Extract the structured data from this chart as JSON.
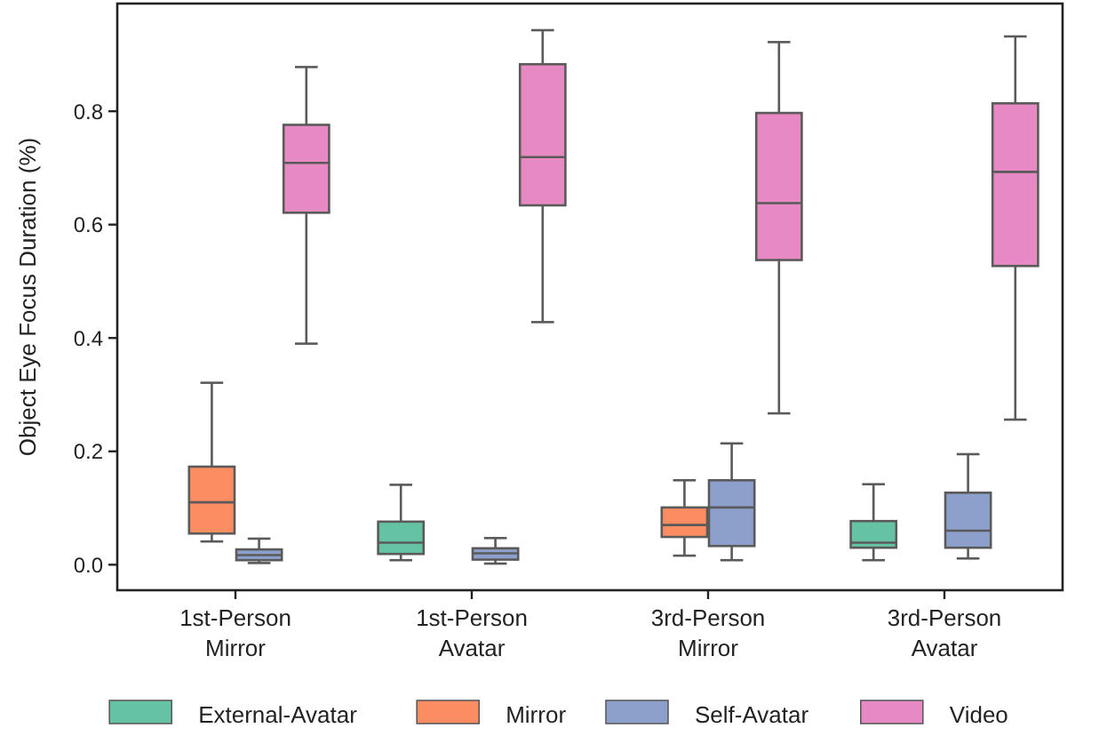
{
  "chart_data": {
    "type": "box",
    "ylabel": "Object Eye Focus Duration (%)",
    "categories": [
      "1st-Person\nMirror",
      "1st-Person\nAvatar",
      "3rd-Person\nMirror",
      "3rd-Person\nAvatar"
    ],
    "ylim": [
      -0.045,
      0.99
    ],
    "yticks": [
      {
        "value": 0,
        "label": "0.0"
      },
      {
        "value": 0.2,
        "label": "0.2"
      },
      {
        "value": 0.4,
        "label": "0.4"
      },
      {
        "value": 0.6,
        "label": "0.6"
      },
      {
        "value": 0.8,
        "label": "0.8"
      }
    ],
    "legend": "bottom",
    "grid": false,
    "series": [
      {
        "name": "External-Avatar",
        "color": "#66c2a5",
        "boxes": [
          null,
          {
            "low": 0.008,
            "q1": 0.019,
            "median": 0.039,
            "q3": 0.076,
            "high": 0.141
          },
          null,
          {
            "low": 0.008,
            "q1": 0.03,
            "median": 0.039,
            "q3": 0.077,
            "high": 0.142
          }
        ]
      },
      {
        "name": "Mirror",
        "color": "#fc8d62",
        "boxes": [
          {
            "low": 0.041,
            "q1": 0.055,
            "median": 0.11,
            "q3": 0.173,
            "high": 0.321
          },
          null,
          {
            "low": 0.016,
            "q1": 0.049,
            "median": 0.07,
            "q3": 0.101,
            "high": 0.149
          },
          null
        ]
      },
      {
        "name": "Self-Avatar",
        "color": "#8da0cb",
        "boxes": [
          {
            "low": 0.003,
            "q1": 0.008,
            "median": 0.017,
            "q3": 0.027,
            "high": 0.046
          },
          {
            "low": 0.002,
            "q1": 0.009,
            "median": 0.02,
            "q3": 0.029,
            "high": 0.047
          },
          {
            "low": 0.008,
            "q1": 0.033,
            "median": 0.101,
            "q3": 0.149,
            "high": 0.214
          },
          {
            "low": 0.011,
            "q1": 0.03,
            "median": 0.06,
            "q3": 0.127,
            "high": 0.195
          }
        ]
      },
      {
        "name": "Video",
        "color": "#e78ac3",
        "boxes": [
          {
            "low": 0.39,
            "q1": 0.621,
            "median": 0.709,
            "q3": 0.776,
            "high": 0.878
          },
          {
            "low": 0.428,
            "q1": 0.634,
            "median": 0.719,
            "q3": 0.883,
            "high": 0.943
          },
          {
            "low": 0.267,
            "q1": 0.5375,
            "median": 0.638,
            "q3": 0.797,
            "high": 0.922
          },
          {
            "low": 0.256,
            "q1": 0.527,
            "median": 0.693,
            "q3": 0.814,
            "high": 0.932
          }
        ]
      }
    ]
  }
}
